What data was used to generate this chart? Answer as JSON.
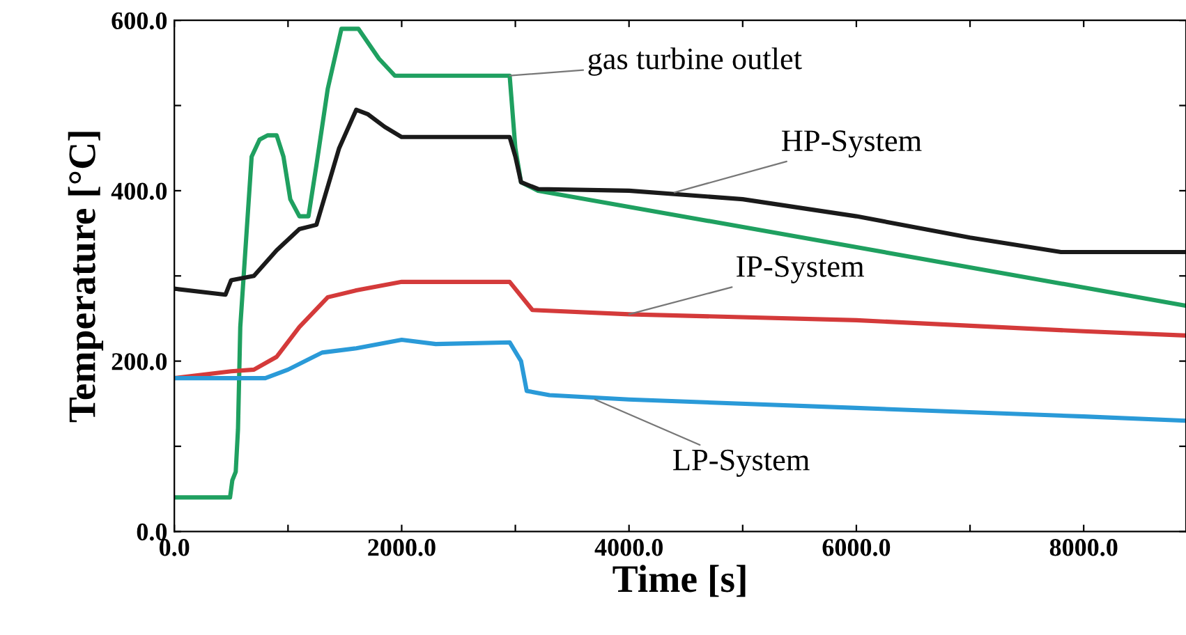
{
  "chart_data": {
    "type": "line",
    "xlabel": "Time [s]",
    "ylabel": "Temperature [°C]",
    "xlim": [
      0,
      8900
    ],
    "ylim": [
      0,
      600
    ],
    "xticks": [
      {
        "value": 0,
        "label": "0.0"
      },
      {
        "value": 1000,
        "label": null
      },
      {
        "value": 2000,
        "label": "2000.0"
      },
      {
        "value": 3000,
        "label": null
      },
      {
        "value": 4000,
        "label": "4000.0"
      },
      {
        "value": 5000,
        "label": null
      },
      {
        "value": 6000,
        "label": "6000.0"
      },
      {
        "value": 7000,
        "label": null
      },
      {
        "value": 8000,
        "label": "8000.0"
      }
    ],
    "yticks": [
      {
        "value": 0,
        "label": "0.0"
      },
      {
        "value": 100,
        "label": null
      },
      {
        "value": 200,
        "label": "200.0"
      },
      {
        "value": 300,
        "label": null
      },
      {
        "value": 400,
        "label": "400.0"
      },
      {
        "value": 500,
        "label": null
      },
      {
        "value": 600,
        "label": "600.0"
      }
    ],
    "grid": false,
    "legend": false,
    "marker": "none",
    "line_style": "solid",
    "series": [
      {
        "color": "#1fa060",
        "x": [
          0,
          490,
          510,
          540,
          560,
          580,
          620,
          680,
          750,
          820,
          900,
          960,
          1020,
          1100,
          1180,
          1250,
          1350,
          1470,
          1620,
          1800,
          1940,
          2950,
          3000,
          3050,
          3200,
          8900
        ],
        "values": [
          40,
          40,
          60,
          70,
          120,
          240,
          320,
          440,
          460,
          465,
          465,
          440,
          390,
          370,
          370,
          430,
          520,
          590,
          590,
          555,
          535,
          535,
          450,
          410,
          400,
          265
        ]
      },
      {
        "color": "#1a1a1a",
        "x": [
          0,
          450,
          500,
          700,
          900,
          1100,
          1250,
          1450,
          1600,
          1700,
          1850,
          2000,
          2950,
          3000,
          3050,
          3200,
          4000,
          5000,
          6000,
          7000,
          7800,
          8900
        ],
        "values": [
          285,
          278,
          295,
          300,
          330,
          355,
          360,
          450,
          495,
          490,
          475,
          463,
          463,
          440,
          410,
          402,
          400,
          390,
          370,
          345,
          328,
          328
        ]
      },
      {
        "color": "#d43a3a",
        "x": [
          0,
          500,
          700,
          900,
          1100,
          1350,
          1600,
          2000,
          2950,
          3150,
          4000,
          6000,
          8000,
          8900
        ],
        "values": [
          180,
          188,
          190,
          205,
          240,
          275,
          283,
          293,
          293,
          260,
          255,
          248,
          235,
          230
        ]
      },
      {
        "color": "#2a9ad8",
        "x": [
          0,
          800,
          1000,
          1300,
          1600,
          2000,
          2300,
          2950,
          3050,
          3100,
          3300,
          4000,
          6000,
          8000,
          8900
        ],
        "values": [
          180,
          180,
          190,
          210,
          215,
          225,
          220,
          222,
          200,
          165,
          160,
          155,
          145,
          135,
          130
        ]
      }
    ],
    "annotations": [
      {
        "text": "gas turbine outlet",
        "x": 2950,
        "y": 535
      },
      {
        "text": "HP-System",
        "x": 4400,
        "y": 398
      },
      {
        "text": "IP-System",
        "x": 4000,
        "y": 255
      },
      {
        "text": "LP-System",
        "x": 3700,
        "y": 155
      }
    ]
  }
}
